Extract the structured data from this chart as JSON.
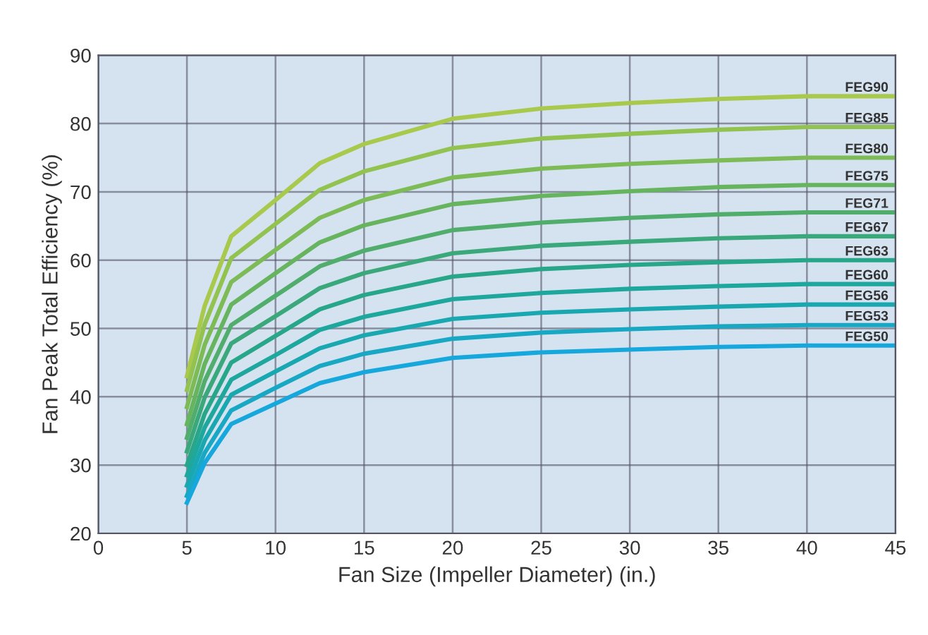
{
  "chart_data": {
    "type": "line",
    "xlabel": "Fan Size (Impeller Diameter) (in.)",
    "ylabel": "Fan Peak Total Efficiency (%)",
    "x": [
      5,
      6,
      7.5,
      10,
      12.5,
      15,
      20,
      25,
      30,
      35,
      40,
      45
    ],
    "xlim": [
      0,
      45
    ],
    "xticks": [
      0,
      5,
      10,
      15,
      20,
      25,
      30,
      35,
      40,
      45
    ],
    "ylim": [
      20,
      90
    ],
    "yticks": [
      20,
      30,
      40,
      50,
      60,
      70,
      80,
      90
    ],
    "grid": true,
    "legend": false,
    "marker": "none",
    "line_style": "solid",
    "series": [
      {
        "name": "FEG90",
        "color": "#a8c94c",
        "values": [
          43,
          53.3,
          63.5,
          68.8,
          74.2,
          77.0,
          80.7,
          82.2,
          83.0,
          83.6,
          84,
          84
        ]
      },
      {
        "name": "FEG85",
        "color": "#92c24f",
        "values": [
          41,
          50.6,
          60.3,
          65.3,
          70.3,
          73.0,
          76.4,
          77.8,
          78.5,
          79.1,
          79.5,
          79.5
        ]
      },
      {
        "name": "FEG80",
        "color": "#7dbb56",
        "values": [
          38.5,
          47.6,
          56.8,
          61.5,
          66.2,
          68.8,
          72.1,
          73.4,
          74.1,
          74.6,
          75,
          75
        ]
      },
      {
        "name": "FEG75",
        "color": "#67b45f",
        "values": [
          36,
          44.8,
          53.5,
          58.1,
          62.6,
          65.1,
          68.2,
          69.4,
          70.1,
          70.7,
          71,
          71
        ]
      },
      {
        "name": "FEG71",
        "color": "#50ad6c",
        "values": [
          34,
          42.3,
          50.5,
          54.8,
          59.1,
          61.4,
          64.4,
          65.5,
          66.2,
          66.7,
          67,
          67
        ]
      },
      {
        "name": "FEG67",
        "color": "#3aa87a",
        "values": [
          32,
          39.9,
          47.8,
          51.8,
          55.9,
          58.1,
          61.0,
          62.1,
          62.7,
          63.2,
          63.5,
          63.5
        ]
      },
      {
        "name": "FEG63",
        "color": "#27a68a",
        "values": [
          30,
          37.5,
          45,
          48.9,
          52.8,
          54.9,
          57.6,
          58.7,
          59.3,
          59.7,
          60,
          60
        ]
      },
      {
        "name": "FEG60",
        "color": "#1ea79c",
        "values": [
          28.5,
          35.5,
          42.5,
          46.1,
          49.8,
          51.7,
          54.3,
          55.2,
          55.8,
          56.2,
          56.5,
          56.5
        ]
      },
      {
        "name": "FEG56",
        "color": "#1aa8b0",
        "values": [
          27,
          33.6,
          40.3,
          43.7,
          47.1,
          49.0,
          51.4,
          52.3,
          52.8,
          53.2,
          53.5,
          53.5
        ]
      },
      {
        "name": "FEG53",
        "color": "#18a8c4",
        "values": [
          25.5,
          31.8,
          38,
          41.3,
          44.5,
          46.3,
          48.5,
          49.4,
          49.9,
          50.3,
          50.5,
          50.5
        ]
      },
      {
        "name": "FEG50",
        "color": "#16a8dc",
        "values": [
          24.5,
          30.3,
          36,
          39.0,
          42.0,
          43.6,
          45.7,
          46.5,
          46.9,
          47.3,
          47.5,
          47.5
        ]
      }
    ]
  }
}
